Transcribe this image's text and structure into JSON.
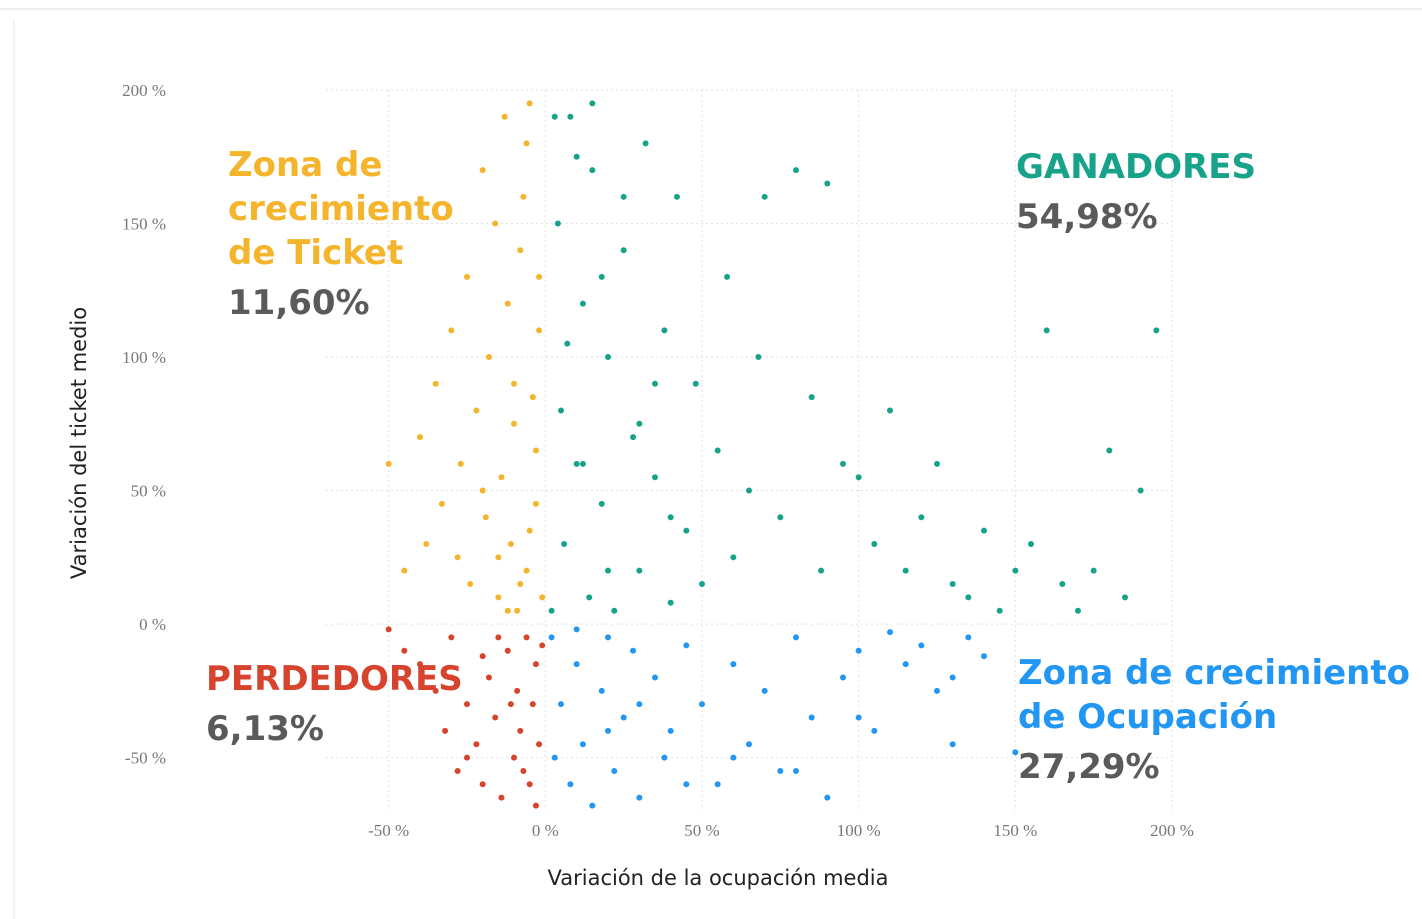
{
  "chart_data": {
    "type": "scatter",
    "x_label": "Variación de la ocupación media",
    "y_label": "Variación del ticket medio",
    "xlim": [
      -70,
      200
    ],
    "ylim": [
      -70,
      200
    ],
    "xticks": [
      {
        "value": -50,
        "label": "-50 %"
      },
      {
        "value": 0,
        "label": "0 %"
      },
      {
        "value": 50,
        "label": "50 %"
      },
      {
        "value": 100,
        "label": "100 %"
      },
      {
        "value": 150,
        "label": "150 %"
      },
      {
        "value": 200,
        "label": "200 %"
      }
    ],
    "yticks": [
      {
        "value": -50,
        "label": "-50 %"
      },
      {
        "value": 0,
        "label": "0 %"
      },
      {
        "value": 50,
        "label": "50 %"
      },
      {
        "value": 100,
        "label": "100 %"
      },
      {
        "value": 150,
        "label": "150 %"
      },
      {
        "value": 200,
        "label": "200 %"
      }
    ],
    "grid": true,
    "series": [
      {
        "name": [
          "GANADORES"
        ],
        "share": 54.98,
        "share_label": "54,98%",
        "color": "#17a38a",
        "x": [
          2,
          4,
          5,
          6,
          8,
          10,
          12,
          14,
          15,
          18,
          20,
          22,
          25,
          28,
          30,
          32,
          35,
          38,
          40,
          42,
          45,
          48,
          50,
          55,
          58,
          60,
          65,
          68,
          70,
          75,
          80,
          85,
          88,
          90,
          95,
          100,
          105,
          110,
          115,
          120,
          125,
          130,
          135,
          140,
          145,
          150,
          155,
          160,
          165,
          170,
          175,
          180,
          185,
          190,
          195,
          3,
          7,
          12,
          20,
          30,
          40,
          18,
          25,
          35,
          10,
          15
        ],
        "values": [
          5,
          150,
          80,
          30,
          190,
          60,
          120,
          10,
          170,
          45,
          100,
          5,
          140,
          70,
          20,
          180,
          55,
          110,
          8,
          160,
          35,
          90,
          15,
          65,
          130,
          25,
          50,
          100,
          160,
          40,
          170,
          85,
          20,
          165,
          60,
          55,
          30,
          80,
          20,
          40,
          60,
          15,
          10,
          35,
          5,
          20,
          30,
          110,
          15,
          5,
          20,
          65,
          10,
          50,
          110,
          190,
          105,
          60,
          20,
          75,
          40,
          130,
          160,
          90,
          175,
          195
        ]
      },
      {
        "name": [
          "Zona de",
          "crecimiento",
          "de Ticket"
        ],
        "share": 11.6,
        "share_label": "11,60%",
        "color": "#f4b52c",
        "x": [
          -50,
          -45,
          -40,
          -38,
          -35,
          -33,
          -30,
          -28,
          -27,
          -25,
          -24,
          -22,
          -20,
          -19,
          -18,
          -16,
          -15,
          -14,
          -13,
          -12,
          -11,
          -10,
          -9,
          -8,
          -7,
          -6,
          -5,
          -4,
          -3,
          -2,
          -1,
          -12,
          -8,
          -5,
          -3,
          -20,
          -15,
          -10,
          -6,
          -2
        ],
        "values": [
          60,
          20,
          70,
          30,
          90,
          45,
          110,
          25,
          60,
          130,
          15,
          80,
          170,
          40,
          100,
          150,
          10,
          55,
          190,
          120,
          30,
          75,
          5,
          140,
          160,
          20,
          195,
          85,
          45,
          110,
          10,
          5,
          15,
          35,
          65,
          50,
          25,
          90,
          180,
          130
        ]
      },
      {
        "name": [
          "PERDEDORES"
        ],
        "share": 6.13,
        "share_label": "6,13%",
        "color": "#d7432c",
        "x": [
          -50,
          -45,
          -40,
          -35,
          -32,
          -30,
          -28,
          -25,
          -22,
          -20,
          -18,
          -16,
          -14,
          -12,
          -10,
          -9,
          -8,
          -6,
          -5,
          -4,
          -3,
          -2,
          -1,
          -30,
          -25,
          -15,
          -11,
          -7,
          -3,
          -20
        ],
        "values": [
          -2,
          -10,
          -15,
          -25,
          -40,
          -5,
          -55,
          -30,
          -45,
          -60,
          -20,
          -35,
          -65,
          -10,
          -50,
          -25,
          -40,
          -5,
          -60,
          -30,
          -15,
          -45,
          -8,
          -20,
          -50,
          -5,
          -30,
          -55,
          -68,
          -12
        ]
      },
      {
        "name": [
          "Zona de crecimiento",
          "de Ocupación"
        ],
        "share": 27.29,
        "share_label": "27,29%",
        "color": "#2196f3",
        "x": [
          2,
          5,
          8,
          10,
          12,
          15,
          18,
          20,
          22,
          25,
          28,
          30,
          35,
          38,
          40,
          45,
          50,
          55,
          60,
          65,
          70,
          75,
          80,
          85,
          90,
          95,
          100,
          105,
          110,
          115,
          120,
          125,
          130,
          135,
          140,
          3,
          10,
          20,
          30,
          45,
          60,
          80,
          100,
          130,
          150
        ],
        "values": [
          -5,
          -30,
          -60,
          -15,
          -45,
          -68,
          -25,
          -5,
          -55,
          -35,
          -10,
          -65,
          -20,
          -50,
          -40,
          -8,
          -30,
          -60,
          -15,
          -45,
          -25,
          -55,
          -5,
          -35,
          -65,
          -20,
          -10,
          -40,
          -3,
          -15,
          -8,
          -25,
          -45,
          -5,
          -12,
          -50,
          -2,
          -40,
          -30,
          -60,
          -50,
          -55,
          -35,
          -20,
          -48
        ]
      }
    ]
  }
}
